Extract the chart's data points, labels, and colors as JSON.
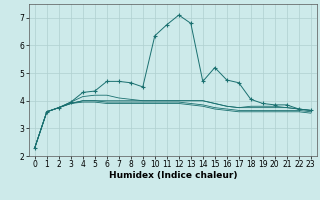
{
  "title": "",
  "xlabel": "Humidex (Indice chaleur)",
  "background_color": "#cdeaea",
  "grid_color": "#b0d0d0",
  "line_color": "#1a7070",
  "xlim": [
    -0.5,
    23.5
  ],
  "ylim": [
    2.0,
    7.5
  ],
  "yticks": [
    2,
    3,
    4,
    5,
    6,
    7
  ],
  "xticks": [
    0,
    1,
    2,
    3,
    4,
    5,
    6,
    7,
    8,
    9,
    10,
    11,
    12,
    13,
    14,
    15,
    16,
    17,
    18,
    19,
    20,
    21,
    22,
    23
  ],
  "series": [
    [
      2.3,
      3.6,
      3.75,
      3.95,
      4.3,
      4.35,
      4.7,
      4.7,
      4.65,
      4.5,
      6.35,
      6.75,
      7.1,
      6.8,
      4.7,
      5.2,
      4.75,
      4.65,
      4.05,
      3.9,
      3.85,
      3.85,
      3.7,
      3.65
    ],
    [
      2.3,
      3.6,
      3.75,
      3.95,
      4.15,
      4.2,
      4.2,
      4.1,
      4.05,
      4.0,
      4.0,
      4.0,
      4.0,
      4.0,
      4.0,
      3.9,
      3.8,
      3.75,
      3.8,
      3.8,
      3.8,
      3.75,
      3.7,
      3.65
    ],
    [
      2.3,
      3.6,
      3.75,
      3.9,
      4.0,
      4.0,
      4.0,
      4.0,
      4.0,
      4.0,
      4.0,
      4.0,
      4.0,
      4.0,
      4.0,
      3.9,
      3.8,
      3.75,
      3.75,
      3.75,
      3.75,
      3.75,
      3.7,
      3.65
    ],
    [
      2.3,
      3.6,
      3.75,
      3.9,
      4.0,
      4.0,
      3.95,
      3.95,
      3.95,
      3.95,
      3.95,
      3.95,
      3.95,
      3.9,
      3.85,
      3.75,
      3.7,
      3.65,
      3.65,
      3.65,
      3.65,
      3.65,
      3.65,
      3.6
    ],
    [
      2.3,
      3.6,
      3.75,
      3.9,
      3.95,
      3.95,
      3.9,
      3.9,
      3.9,
      3.9,
      3.9,
      3.9,
      3.9,
      3.85,
      3.8,
      3.7,
      3.65,
      3.6,
      3.6,
      3.6,
      3.6,
      3.6,
      3.6,
      3.55
    ]
  ],
  "tick_labelsize": 5.5,
  "xlabel_fontsize": 6.5,
  "marker": "+",
  "markersize": 3.5
}
